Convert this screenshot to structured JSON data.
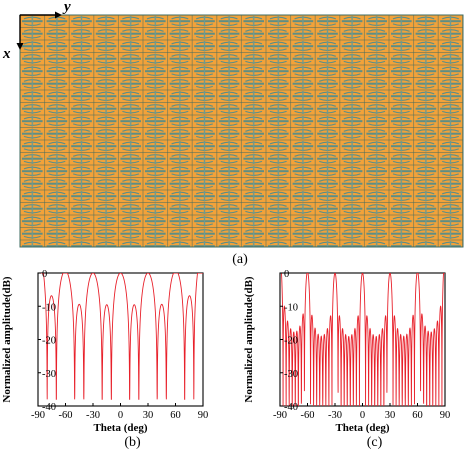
{
  "array_panel": {
    "axis_x": "x",
    "axis_y": "y",
    "caption": "(a)",
    "colors": {
      "substrate": "#f2a23a",
      "metal": "#5d8e86",
      "line": "#3d6b62"
    }
  },
  "chart_data": [
    {
      "type": "line",
      "panel": "(b)",
      "xlabel": "Theta (deg)",
      "ylabel": "Normalized amplitude(dB)",
      "xlim": [
        -90,
        90
      ],
      "ylim": [
        -40,
        0
      ],
      "xticks": [
        -90,
        -60,
        -30,
        0,
        30,
        60,
        90
      ],
      "yticks": [
        0,
        -10,
        -20,
        -30,
        -40
      ],
      "line_color": "#e8202a",
      "main_lobes_deg": [
        -30,
        0,
        30
      ],
      "main_lobe_level_db": 0,
      "edge_level_db": -5,
      "first_sidelobe_level_db": -13,
      "null_depth_db": -38,
      "lobes_between_main_beams": 2,
      "nulls_outside_main_beams": 3
    },
    {
      "type": "line",
      "panel": "(c)",
      "xlabel": "Theta (deg)",
      "ylabel": "Normalized amplitude(dB)",
      "xlim": [
        -90,
        90
      ],
      "ylim": [
        -40,
        0
      ],
      "xticks": [
        -90,
        -60,
        -30,
        0,
        30,
        60,
        90
      ],
      "yticks": [
        0,
        -10,
        -20,
        -30,
        -40
      ],
      "line_color": "#e8202a",
      "main_lobes_deg": [
        -30,
        0,
        30
      ],
      "main_lobe_level_db": 0,
      "edge_level_db": -13,
      "first_sidelobe_level_db": -13,
      "null_depth_db": -40,
      "lobes_between_main_beams": 8,
      "nulls_outside_main_beams": 9
    }
  ]
}
